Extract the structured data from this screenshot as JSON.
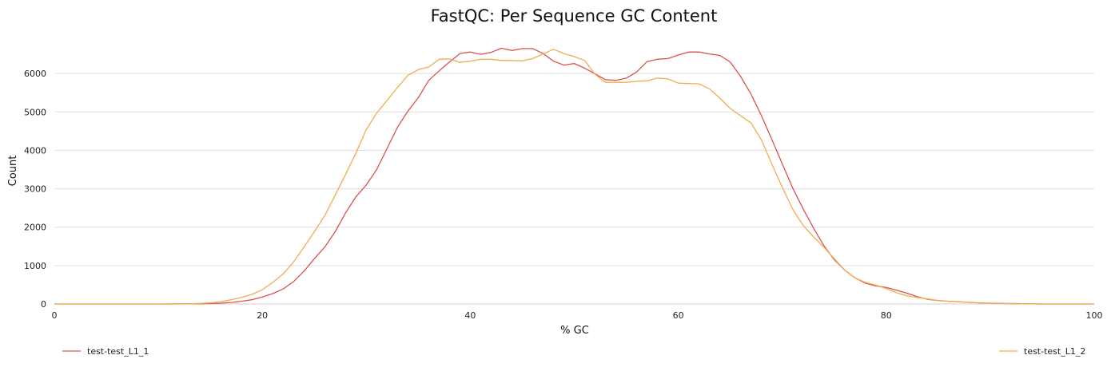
{
  "chart_data": {
    "type": "line",
    "title": "FastQC: Per Sequence GC Content",
    "xlabel": "% GC",
    "ylabel": "Count",
    "xlim": [
      0,
      100
    ],
    "ylim": [
      0,
      7000
    ],
    "x_ticks": [
      0,
      20,
      40,
      60,
      80,
      100
    ],
    "y_ticks": [
      0,
      1000,
      2000,
      3000,
      4000,
      5000,
      6000
    ],
    "grid": "horizontal",
    "legend_position": "bottom",
    "series": [
      {
        "name": "test-test_L1_1",
        "color": "#d9534f",
        "x": [
          0,
          10,
          14,
          15,
          16,
          17,
          18,
          19,
          20,
          21,
          22,
          23,
          24,
          25,
          26,
          27,
          28,
          29,
          30,
          31,
          32,
          33,
          34,
          35,
          36,
          37,
          38,
          39,
          40,
          41,
          42,
          43,
          44,
          45,
          46,
          47,
          48,
          49,
          50,
          51,
          52,
          53,
          54,
          55,
          56,
          57,
          58,
          59,
          60,
          61,
          62,
          63,
          64,
          65,
          66,
          67,
          68,
          69,
          70,
          71,
          72,
          73,
          74,
          75,
          76,
          77,
          78,
          79,
          80,
          81,
          82,
          83,
          84,
          85,
          86,
          87,
          88,
          89,
          90,
          92,
          95,
          100
        ],
        "y": [
          0,
          0,
          5,
          10,
          20,
          40,
          70,
          110,
          180,
          270,
          390,
          580,
          850,
          1180,
          1480,
          1880,
          2370,
          2790,
          3100,
          3500,
          4050,
          4600,
          5020,
          5370,
          5820,
          6070,
          6300,
          6520,
          6560,
          6500,
          6550,
          6660,
          6600,
          6650,
          6650,
          6520,
          6320,
          6220,
          6260,
          6140,
          5990,
          5840,
          5820,
          5880,
          6040,
          6310,
          6370,
          6390,
          6480,
          6560,
          6560,
          6510,
          6470,
          6300,
          5920,
          5460,
          4900,
          4280,
          3650,
          3020,
          2480,
          1980,
          1520,
          1150,
          880,
          680,
          540,
          470,
          430,
          360,
          280,
          190,
          120,
          90,
          70,
          60,
          40,
          30,
          20,
          10,
          0,
          0
        ]
      },
      {
        "name": "test-test_L1_2",
        "color": "#f0ad4e",
        "x": [
          0,
          10,
          13,
          14,
          15,
          16,
          17,
          18,
          19,
          20,
          21,
          22,
          23,
          24,
          25,
          26,
          27,
          28,
          29,
          30,
          31,
          32,
          33,
          34,
          35,
          36,
          37,
          38,
          39,
          40,
          41,
          42,
          43,
          44,
          45,
          46,
          47,
          48,
          49,
          50,
          51,
          52,
          53,
          54,
          55,
          56,
          57,
          58,
          59,
          60,
          61,
          62,
          63,
          64,
          65,
          66,
          67,
          68,
          69,
          70,
          71,
          72,
          73,
          74,
          75,
          76,
          77,
          78,
          79,
          80,
          81,
          82,
          83,
          84,
          85,
          86,
          87,
          88,
          89,
          90,
          92,
          95,
          100
        ],
        "y": [
          0,
          0,
          5,
          15,
          30,
          60,
          110,
          170,
          250,
          370,
          560,
          780,
          1090,
          1480,
          1880,
          2300,
          2830,
          3370,
          3930,
          4540,
          4970,
          5300,
          5640,
          5950,
          6100,
          6170,
          6370,
          6380,
          6290,
          6320,
          6370,
          6370,
          6340,
          6340,
          6330,
          6390,
          6510,
          6630,
          6520,
          6440,
          6340,
          5980,
          5770,
          5770,
          5770,
          5800,
          5810,
          5880,
          5860,
          5750,
          5740,
          5730,
          5600,
          5360,
          5090,
          4900,
          4710,
          4270,
          3640,
          3040,
          2470,
          2050,
          1750,
          1480,
          1180,
          880,
          680,
          560,
          490,
          400,
          290,
          210,
          170,
          130,
          90,
          70,
          60,
          40,
          30,
          20,
          10,
          0,
          0
        ]
      }
    ]
  }
}
